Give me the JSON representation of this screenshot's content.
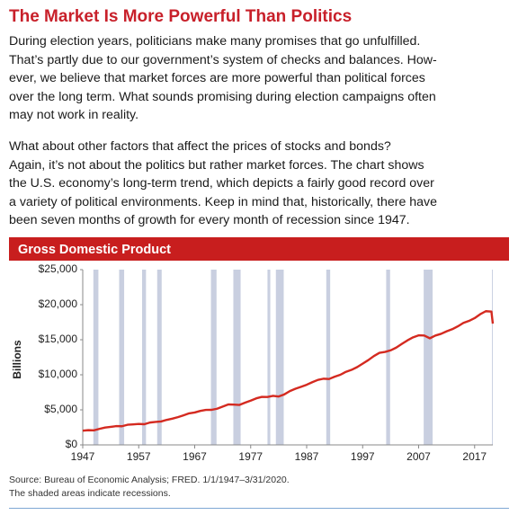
{
  "header": {
    "title": "The Market Is More Powerful Than Politics"
  },
  "paragraphs": [
    [
      "During election years, politicians make many promises that go unfulfilled.",
      "That’s partly due to our government’s system of checks and balances. How-",
      "ever, we believe that market forces are more powerful than political forces",
      "over the long term. What sounds promising during election campaigns often",
      "may not work in reality."
    ],
    [
      "What about other factors that affect the prices of stocks and bonds?",
      "Again, it’s not about the politics but rather market forces. The chart shows",
      "the U.S. economy’s long-term trend, which depicts a fairly good record over",
      "a variety of political environments. Keep in mind that, historically, there have",
      "been seven months of growth for every month of recession since 1947."
    ]
  ],
  "chart_data": {
    "type": "line",
    "title": "Gross Domestic Product",
    "y_label": "Billions",
    "xlim": [
      1947,
      2020.25
    ],
    "xticks": [
      1947,
      1957,
      1967,
      1977,
      1987,
      1997,
      2007,
      2017
    ],
    "ylim": [
      0,
      25000
    ],
    "yticks": [
      {
        "value": 0,
        "label": "$0"
      },
      {
        "value": 5000,
        "label": "$5,000"
      },
      {
        "value": 10000,
        "label": "$10,000"
      },
      {
        "value": 15000,
        "label": "$15,000"
      },
      {
        "value": 20000,
        "label": "$20,000"
      },
      {
        "value": 25000,
        "label": "$25,000"
      }
    ],
    "grid": false,
    "recession_color": "#c9cfe0",
    "recessions": [
      [
        1948.9,
        1949.8
      ],
      [
        1953.5,
        1954.4
      ],
      [
        1957.6,
        1958.3
      ],
      [
        1960.3,
        1961.1
      ],
      [
        1969.9,
        1970.9
      ],
      [
        1973.9,
        1975.2
      ],
      [
        1980.0,
        1980.5
      ],
      [
        1981.5,
        1982.9
      ],
      [
        1990.5,
        1991.2
      ],
      [
        2001.2,
        2001.9
      ],
      [
        2007.9,
        2009.5
      ],
      [
        2020.1,
        2020.25
      ]
    ],
    "series": [
      {
        "color": "#d42a20",
        "x": [
          1947,
          1948,
          1949,
          1950,
          1951,
          1952,
          1953,
          1954,
          1955,
          1956,
          1957,
          1958,
          1959,
          1960,
          1961,
          1962,
          1963,
          1964,
          1965,
          1966,
          1967,
          1968,
          1969,
          1970,
          1971,
          1972,
          1973,
          1974,
          1975,
          1976,
          1977,
          1978,
          1979,
          1980,
          1981,
          1982,
          1983,
          1984,
          1985,
          1986,
          1987,
          1988,
          1989,
          1990,
          1991,
          1992,
          1993,
          1994,
          1995,
          1996,
          1997,
          1998,
          1999,
          2000,
          2001,
          2002,
          2003,
          2004,
          2005,
          2006,
          2007,
          2008,
          2009,
          2010,
          2011,
          2012,
          2013,
          2014,
          2015,
          2016,
          2017,
          2018,
          2019,
          2020,
          2020.25
        ],
        "values": [
          2030,
          2100,
          2080,
          2290,
          2470,
          2570,
          2680,
          2660,
          2870,
          2930,
          2990,
          2950,
          3190,
          3270,
          3340,
          3570,
          3740,
          3960,
          4220,
          4500,
          4620,
          4850,
          4990,
          5000,
          5160,
          5470,
          5770,
          5740,
          5700,
          6020,
          6310,
          6640,
          6850,
          6840,
          7000,
          6900,
          7200,
          7680,
          8010,
          8290,
          8580,
          8940,
          9270,
          9440,
          9400,
          9730,
          10000,
          10420,
          10700,
          11090,
          11590,
          12090,
          12670,
          13130,
          13260,
          13490,
          13880,
          14400,
          14910,
          15340,
          15630,
          15600,
          15210,
          15600,
          15840,
          16200,
          16500,
          16910,
          17400,
          17690,
          18080,
          18640,
          19070,
          19010,
          17300
        ]
      }
    ]
  },
  "footer": {
    "source": "Source: Bureau of Economic Analysis; FRED. 1/1/1947–3/31/2020.",
    "note": "The shaded areas indicate recessions."
  }
}
